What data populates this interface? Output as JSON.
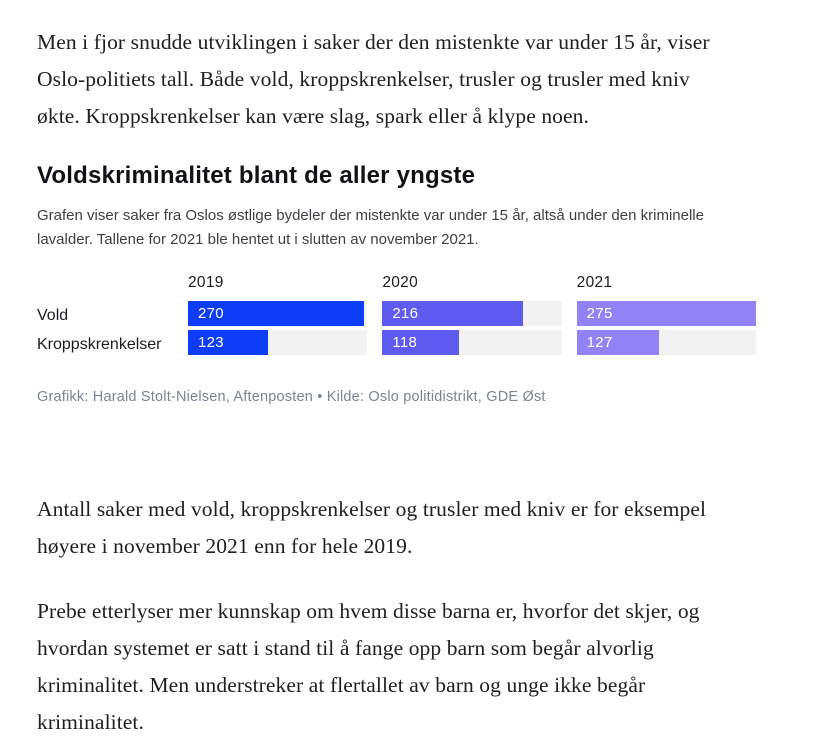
{
  "article": {
    "paragraph1": "Men i fjor snudde utviklingen i saker der den mistenkte var under 15 år, viser Oslo-politiets tall. Både vold, kroppskrenkelser, trusler og trusler med kniv økte. Kroppskrenkelser kan være slag, spark eller å klype noen.",
    "paragraph2": "Antall saker med vold, kroppskrenkelser og trusler med kniv er for eksempel høyere i november 2021 enn for hele 2019.",
    "paragraph3": "Prebe etterlyser mer kunnskap om hvem disse barna er, hvorfor det skjer, og hvordan systemet er satt i stand til å fange opp barn som begår alvorlig kriminalitet. Men understreker at flertallet av barn og unge ikke begår kriminalitet."
  },
  "chart": {
    "title": "Voldskriminalitet blant de aller yngste",
    "description": "Grafen viser saker fra Oslos østlige bydeler der mistenkte var under 15 år, altså under den kriminelle lavalder. Tallene for 2021 ble hentet ut i slutten av november 2021.",
    "credit": "Grafikk: Harald Stolt-Nielsen, Aftenposten • Kilde: Oslo politidistrikt, GDE Øst",
    "track_color": "#f2f2f3"
  },
  "chart_data": {
    "type": "bar",
    "orientation": "horizontal",
    "title": "Voldskriminalitet blant de aller yngste",
    "categories": [
      "Vold",
      "Kroppskrenkelser"
    ],
    "series": [
      {
        "name": "2019",
        "color": "#0f3cf5",
        "values": [
          270,
          123
        ]
      },
      {
        "name": "2020",
        "color": "#5f5af0",
        "values": [
          216,
          118
        ]
      },
      {
        "name": "2021",
        "color": "#9182f5",
        "values": [
          275,
          127
        ]
      }
    ],
    "value_max": 275,
    "grid": false,
    "legend_position": "column-headers"
  }
}
